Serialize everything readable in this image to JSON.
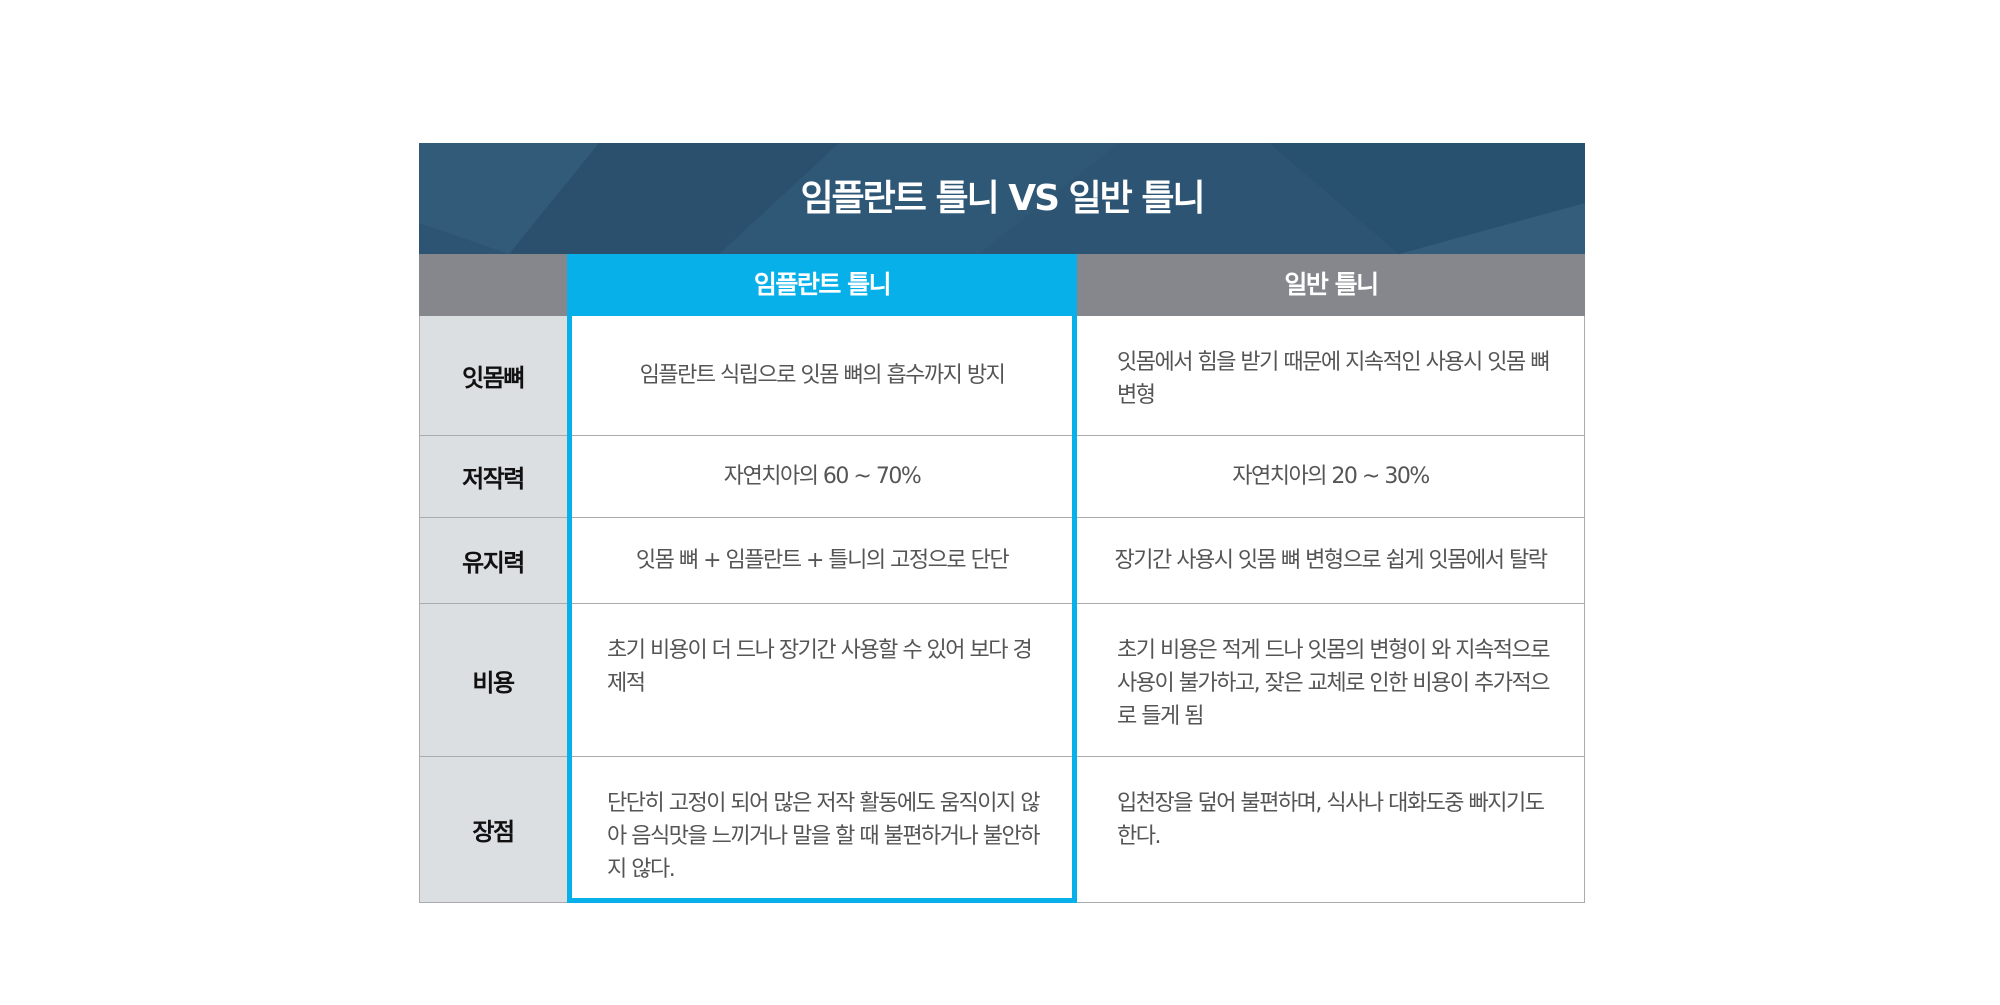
{
  "title": "임플란트 틀니 VS 일반 틀니",
  "columns": [
    "임플란트 틀니",
    "일반 틀니"
  ],
  "colors": {
    "title_bg": "#2d5473",
    "accent": "#08b0ea",
    "header_gray": "#85878d",
    "label_bg": "#dcdfe2"
  },
  "rows": [
    {
      "label": "잇몸뼈",
      "implant": "임플란트 식립으로 잇몸 뼈의 흡수까지 방지",
      "general": "잇몸에서 힘을 받기 때문에 지속적인 사용시 잇몸 뼈변형"
    },
    {
      "label": "저작력",
      "implant": "자연치아의 60 ~ 70%",
      "general": "자연치아의 20 ~ 30%"
    },
    {
      "label": "유지력",
      "implant": "잇몸 뼈 + 임플란트 + 틀니의 고정으로 단단",
      "general": "장기간 사용시 잇몸 뼈 변형으로 쉽게 잇몸에서 탈락"
    },
    {
      "label": "비용",
      "implant": "초기 비용이 더 드나 장기간 사용할 수 있어 보다 경제적",
      "general": "초기 비용은 적게 드나 잇몸의 변형이 와 지속적으로 사용이 불가하고, 잦은 교체로 인한 비용이 추가적으로 들게 됨"
    },
    {
      "label": "장점",
      "implant": "단단히 고정이 되어 많은 저작 활동에도 움직이지 않아 음식맛을 느끼거나 말을 할 때 불편하거나 불안하지 않다.",
      "general": "입천장을 덮어 불편하며, 식사나 대화도중 빠지기도 한다."
    }
  ]
}
